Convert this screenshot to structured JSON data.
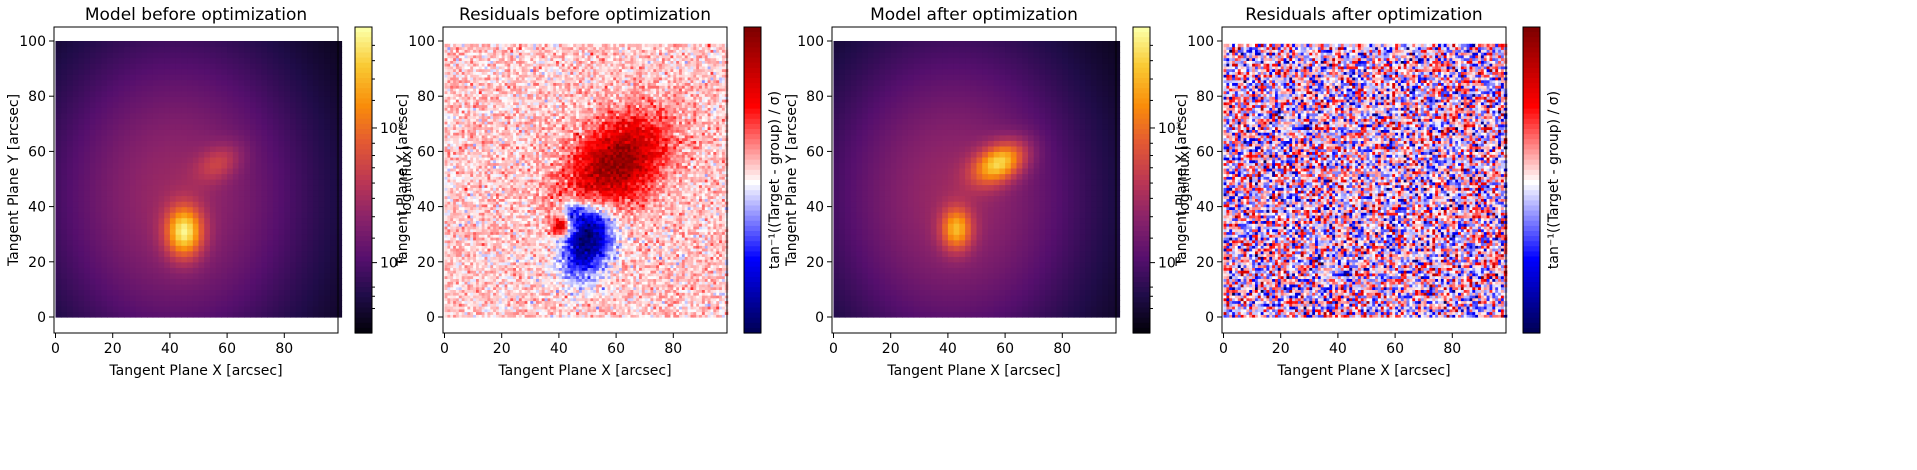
{
  "chart_data": [
    {
      "type": "heatmap",
      "title": "Model before optimization",
      "xlabel": "Tangent Plane X [arcsec]",
      "ylabel": "Tangent Plane Y [arcsec]",
      "xlim": [
        0,
        100
      ],
      "ylim": [
        0,
        100
      ],
      "xticks": [
        "0",
        "20",
        "40",
        "60",
        "80"
      ],
      "yticks": [
        "0",
        "20",
        "40",
        "60",
        "80",
        "100"
      ],
      "colormap": "inferno",
      "colorbar": {
        "label": "log₁₀(flux)",
        "scale": "log",
        "ticks": [
          "10²",
          "10³"
        ]
      },
      "components": [
        {
          "center": [
            45,
            31
          ],
          "peak": "brightest"
        },
        {
          "center": [
            57,
            56
          ],
          "peak": "faint"
        }
      ]
    },
    {
      "type": "heatmap",
      "title": "Residuals before optimization",
      "xlabel": "Tangent Plane X [arcsec]",
      "ylabel": "Tangent Plane Y [arcsec]",
      "xlim": [
        0,
        100
      ],
      "ylim": [
        0,
        100
      ],
      "xticks": [
        "0",
        "20",
        "40",
        "60",
        "80"
      ],
      "yticks": [
        "0",
        "20",
        "40",
        "60",
        "80",
        "100"
      ],
      "colormap": "seismic",
      "colorbar": {
        "label": "tan⁻¹((Target - group) / σ)",
        "ticks": []
      }
    },
    {
      "type": "heatmap",
      "title": "Model after optimization",
      "xlabel": "Tangent Plane X [arcsec]",
      "ylabel": "Tangent Plane Y [arcsec]",
      "xlim": [
        0,
        100
      ],
      "ylim": [
        0,
        100
      ],
      "xticks": [
        "0",
        "20",
        "40",
        "60",
        "80"
      ],
      "yticks": [
        "0",
        "20",
        "40",
        "60",
        "80",
        "100"
      ],
      "colormap": "inferno",
      "colorbar": {
        "label": "log₁₀(flux)",
        "scale": "log",
        "ticks": [
          "10²",
          "10³"
        ]
      },
      "components": [
        {
          "center": [
            43,
            32
          ],
          "peak": "bright"
        },
        {
          "center": [
            58,
            56
          ],
          "peak": "brightest"
        }
      ]
    },
    {
      "type": "heatmap",
      "title": "Residuals after optimization",
      "xlabel": "Tangent Plane X [arcsec]",
      "ylabel": "Tangent Plane Y [arcsec]",
      "xlim": [
        0,
        100
      ],
      "ylim": [
        0,
        100
      ],
      "xticks": [
        "0",
        "20",
        "40",
        "60",
        "80"
      ],
      "yticks": [
        "0",
        "20",
        "40",
        "60",
        "80",
        "100"
      ],
      "colormap": "seismic",
      "colorbar": {
        "label": "tan⁻¹((Target - group) / σ)",
        "ticks": []
      }
    }
  ]
}
